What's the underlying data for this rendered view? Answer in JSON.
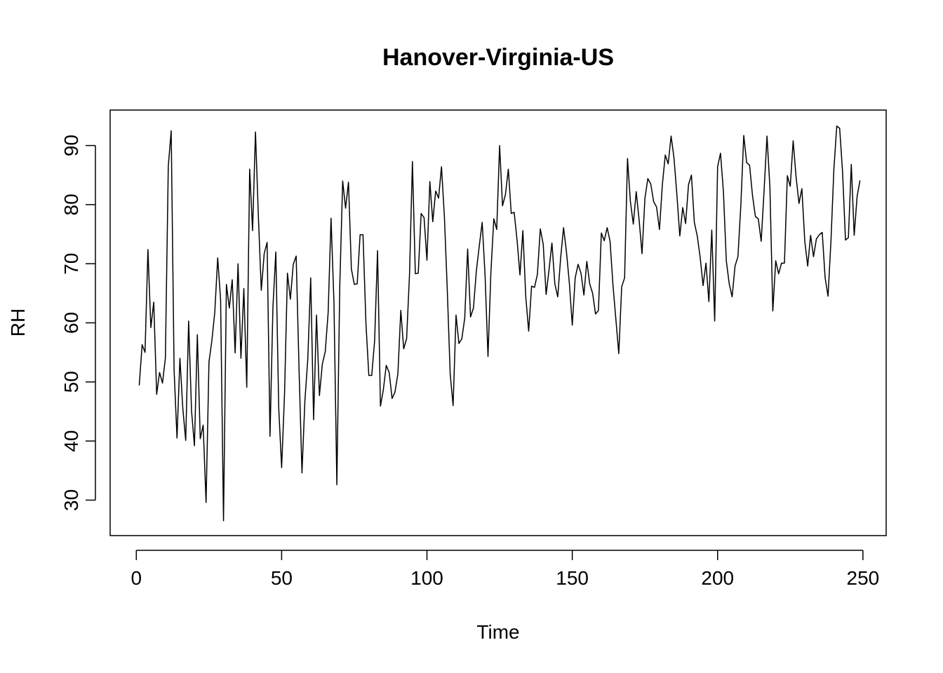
{
  "chart_data": {
    "type": "line",
    "title": "Hanover-Virginia-US",
    "xlabel": "Time",
    "ylabel": "RH",
    "xlim": [
      -9,
      258
    ],
    "ylim": [
      24,
      96
    ],
    "x_ticks": [
      0,
      50,
      100,
      150,
      200,
      250
    ],
    "x_tick_labels": [
      "0",
      "50",
      "100",
      "150",
      "200",
      "250"
    ],
    "y_ticks": [
      30,
      40,
      50,
      60,
      70,
      80,
      90
    ],
    "y_tick_labels": [
      "30",
      "40",
      "50",
      "60",
      "70",
      "80",
      "90"
    ],
    "grid": false,
    "legend": "none",
    "line_color": "#000000",
    "series": [
      {
        "x_start": 1,
        "x_step": 1,
        "values": [
          49.4,
          56.3,
          55.0,
          72.4,
          59.2,
          63.5,
          47.9,
          51.6,
          49.8,
          54.0,
          86.5,
          92.5,
          52.0,
          40.5,
          54.0,
          45.5,
          40.1,
          60.3,
          45.1,
          39.2,
          58.0,
          40.4,
          42.7,
          29.6,
          53.4,
          57.0,
          61.8,
          71.0,
          63.9,
          26.5,
          66.5,
          62.5,
          67.3,
          54.9,
          70.0,
          54.0,
          65.8,
          49.1,
          86.0,
          75.6,
          92.3,
          78.0,
          65.5,
          71.7,
          73.6,
          40.8,
          62.6,
          72.0,
          45.6,
          35.5,
          48.0,
          68.4,
          64.0,
          69.9,
          71.3,
          52.0,
          34.6,
          46.8,
          53.9,
          67.6,
          43.6,
          61.3,
          47.7,
          53.0,
          55.1,
          61.7,
          77.7,
          63.5,
          32.6,
          66.1,
          84.0,
          79.4,
          83.8,
          69.1,
          66.5,
          66.6,
          74.9,
          74.9,
          60.0,
          51.1,
          51.1,
          57.0,
          72.2,
          45.9,
          48.7,
          52.8,
          51.6,
          47.2,
          48.3,
          51.4,
          62.1,
          55.6,
          57.3,
          68.2,
          87.3,
          68.3,
          68.4,
          78.5,
          77.8,
          70.6,
          83.9,
          77.1,
          82.3,
          81.1,
          86.4,
          78.0,
          65.5,
          51.3,
          46.0,
          61.3,
          56.5,
          57.3,
          60.8,
          72.5,
          61.0,
          62.5,
          68.8,
          73.0,
          77.0,
          68.0,
          54.3,
          68.5,
          77.6,
          75.8,
          90.0,
          79.8,
          81.7,
          86.0,
          78.5,
          78.7,
          74.0,
          68.1,
          75.6,
          64.4,
          58.6,
          66.2,
          66.0,
          68.2,
          75.9,
          73.3,
          64.8,
          69.0,
          73.5,
          66.6,
          64.4,
          71.0,
          76.1,
          72.0,
          66.7,
          59.6,
          67.6,
          69.9,
          68.4,
          64.7,
          70.4,
          66.6,
          65.0,
          61.5,
          62.1,
          75.2,
          73.9,
          76.1,
          73.8,
          66.4,
          60.6,
          54.8,
          66.1,
          67.6,
          87.8,
          80.5,
          76.7,
          82.2,
          77.4,
          71.7,
          81.1,
          84.4,
          83.5,
          80.5,
          79.6,
          75.8,
          83.4,
          88.4,
          86.9,
          91.6,
          87.9,
          81.6,
          74.7,
          79.5,
          76.8,
          83.4,
          85.0,
          77.0,
          74.7,
          71.1,
          66.3,
          70.1,
          63.6,
          75.7,
          60.3,
          86.4,
          88.7,
          82.2,
          70.5,
          66.6,
          64.4,
          69.6,
          71.2,
          79.9,
          91.7,
          87.1,
          86.7,
          81.6,
          78.0,
          77.6,
          73.8,
          82.4,
          91.6,
          82.9,
          62.0,
          70.5,
          68.3,
          70.1,
          70.1,
          84.9,
          83.1,
          90.8,
          84.7,
          80.2,
          82.7,
          73.8,
          69.6,
          74.8,
          71.2,
          74.2,
          74.9,
          75.3,
          67.6,
          64.5,
          73.8,
          85.9,
          93.3,
          92.9,
          85.5,
          74.0,
          74.4,
          86.8,
          74.8,
          81.4,
          84.1
        ]
      }
    ]
  }
}
